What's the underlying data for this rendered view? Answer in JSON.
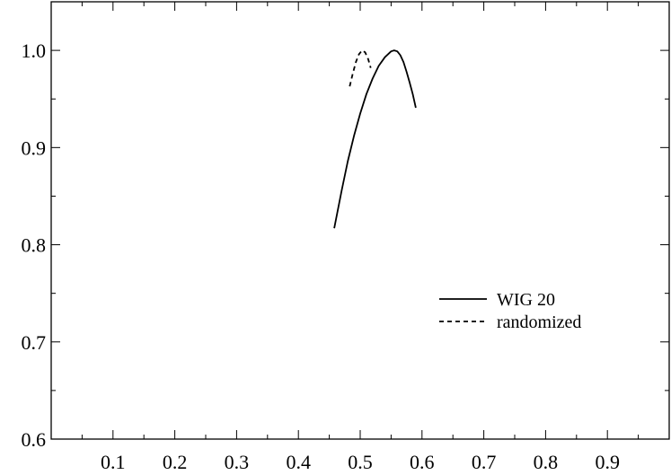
{
  "chart_data": {
    "type": "line",
    "title": "",
    "xlabel": "",
    "ylabel": "",
    "xlim": [
      0,
      1
    ],
    "ylim": [
      0.6,
      1.05
    ],
    "x_ticks": [
      0.1,
      0.2,
      0.3,
      0.4,
      0.5,
      0.6,
      0.7,
      0.8,
      0.9
    ],
    "x_tick_labels": [
      "0.1",
      "0.2",
      "0.3",
      "0.4",
      "0.5",
      "0.6",
      "0.7",
      "0.8",
      "0.9"
    ],
    "y_ticks": [
      0.6,
      0.7,
      0.8,
      0.9,
      1.0
    ],
    "y_tick_labels": [
      "0.6",
      "0.7",
      "0.8",
      "0.9",
      "1.0"
    ],
    "grid": false,
    "legend_position": "right",
    "series": [
      {
        "name": "WIG 20",
        "style": "solid",
        "color": "#000000",
        "x": [
          0.458,
          0.47,
          0.48,
          0.49,
          0.5,
          0.51,
          0.52,
          0.53,
          0.54,
          0.55,
          0.555,
          0.56,
          0.565,
          0.57,
          0.575,
          0.58,
          0.585,
          0.59
        ],
        "y": [
          0.817,
          0.856,
          0.886,
          0.912,
          0.935,
          0.955,
          0.971,
          0.984,
          0.993,
          0.999,
          1.0,
          0.999,
          0.995,
          0.988,
          0.978,
          0.967,
          0.955,
          0.941
        ]
      },
      {
        "name": "randomized",
        "style": "dashed",
        "color": "#000000",
        "x": [
          0.483,
          0.488,
          0.493,
          0.498,
          0.503,
          0.508,
          0.513,
          0.517
        ],
        "y": [
          0.963,
          0.976,
          0.988,
          0.996,
          1.0,
          0.998,
          0.991,
          0.982
        ]
      }
    ]
  }
}
